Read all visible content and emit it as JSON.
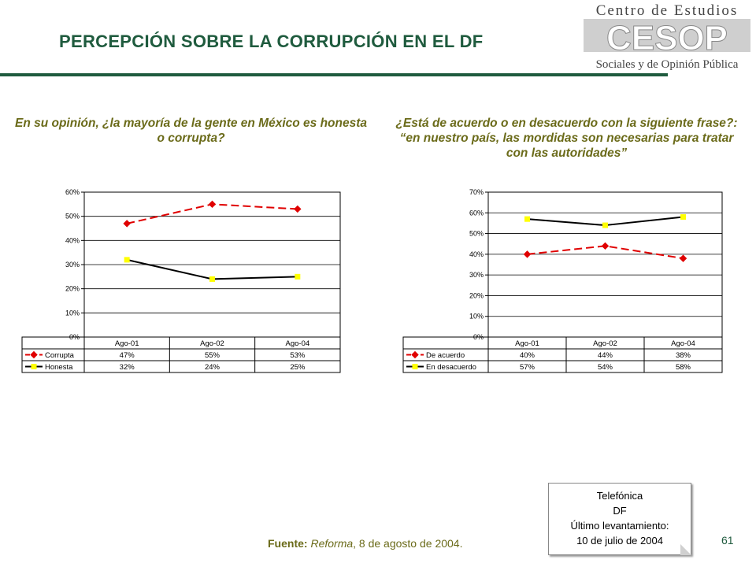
{
  "page": {
    "title": "PERCEPCIÓN SOBRE LA CORRUPCIÓN EN EL DF",
    "page_number": "61"
  },
  "logo": {
    "line1": "Centro de Estudios",
    "mark": "CESOP",
    "line2": "Sociales y de Opinión Pública"
  },
  "questions": {
    "left": "En su opinión, ¿la mayoría de la gente en México es honesta o corrupta?",
    "right": "¿Está de acuerdo o en desacuerdo con la siguiente frase?: “en nuestro país, las mordidas son necesarias para tratar con las autoridades”"
  },
  "source": {
    "label": "Fuente:",
    "publication": "Reforma",
    "rest": ", 8 de agosto de 2004."
  },
  "note": {
    "line1": "Telefónica",
    "line2": "DF",
    "line3": "Último levantamiento:",
    "line4": "10 de julio de 2004"
  },
  "colors": {
    "series_red": "#e00000",
    "series_yellow": "#ffff00",
    "series_black": "#000000",
    "title_green": "#1f5b3e",
    "question_olive": "#6b6b1a"
  },
  "chart_data": [
    {
      "type": "line",
      "categories": [
        "Ago-01",
        "Ago-02",
        "Ago-04"
      ],
      "yticks": [
        "0%",
        "10%",
        "20%",
        "30%",
        "40%",
        "50%",
        "60%"
      ],
      "ylim": [
        0,
        60
      ],
      "grid": true,
      "legend_placement": "data-table-below",
      "series": [
        {
          "name": "Corrupta",
          "values": [
            47,
            55,
            53
          ],
          "labels": [
            "47%",
            "55%",
            "53%"
          ],
          "line_color": "#e00000",
          "marker_color": "#e00000",
          "marker": "diamond",
          "dash": true
        },
        {
          "name": "Honesta",
          "values": [
            32,
            24,
            25
          ],
          "labels": [
            "32%",
            "24%",
            "25%"
          ],
          "line_color": "#000000",
          "marker_color": "#ffff00",
          "marker": "square",
          "dash": false
        }
      ]
    },
    {
      "type": "line",
      "categories": [
        "Ago-01",
        "Ago-02",
        "Ago-04"
      ],
      "yticks": [
        "0%",
        "10%",
        "20%",
        "30%",
        "40%",
        "50%",
        "60%",
        "70%"
      ],
      "ylim": [
        0,
        70
      ],
      "grid": true,
      "legend_placement": "data-table-below",
      "series": [
        {
          "name": "De acuerdo",
          "values": [
            40,
            44,
            38
          ],
          "labels": [
            "40%",
            "44%",
            "38%"
          ],
          "line_color": "#e00000",
          "marker_color": "#e00000",
          "marker": "diamond",
          "dash": true
        },
        {
          "name": "En desacuerdo",
          "values": [
            57,
            54,
            58
          ],
          "labels": [
            "57%",
            "54%",
            "58%"
          ],
          "line_color": "#000000",
          "marker_color": "#ffff00",
          "marker": "square",
          "dash": false
        }
      ]
    }
  ]
}
